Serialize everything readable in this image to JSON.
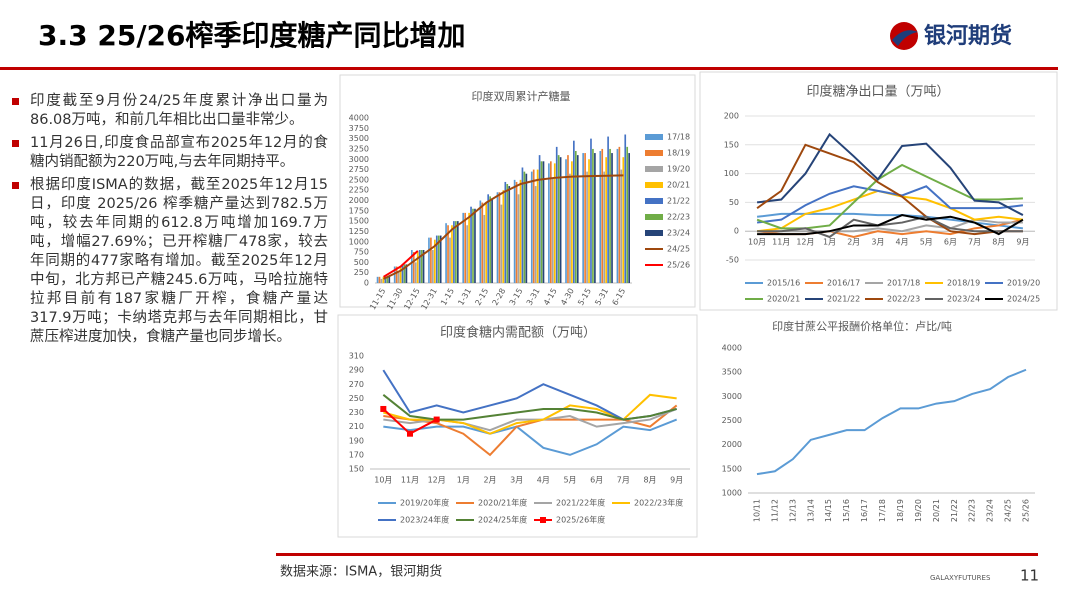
{
  "header": {
    "title": "3.3  25/26榨季印度糖产同比增加"
  },
  "logo": {
    "text": "银河期货"
  },
  "bullets": [
    "印度截至9月份24/25年度累计净出口量为86.08万吨，和前几年相比出口量非常少。",
    "11月26日,印度食品部宣布2025年12月的食糖内销配额为220万吨,与去年同期持平。",
    "根据印度ISMA的数据，截至2025年12月15日，印度 2025/26 榨季糖产量达到782.5万吨，较去年同期的612.8万吨增加169.7万吨，增幅27.69%；已开榨糖厂478家，较去年同期的477家略有增加。截至2025年12月中旬，北方邦已产糖245.6万吨，马哈拉施特拉邦目前有187家糖厂开榨，食糖产量达317.9万吨；卡纳塔克邦与去年同期相比，甘蔗压榨进度加快，食糖产量也同步增长。"
  ],
  "chart_data": [
    {
      "type": "bar",
      "title": "印度双周累计产糖量",
      "categories": [
        "11-15",
        "11-30",
        "12-15",
        "12-31",
        "1-15",
        "1-31",
        "2-15",
        "2-28",
        "3-15",
        "3-31",
        "4-15",
        "4-30",
        "5-15",
        "5-31",
        "6-15"
      ],
      "ylim": [
        0,
        4000
      ],
      "yticks": [
        0,
        250,
        500,
        750,
        1000,
        1250,
        1500,
        1750,
        2000,
        2250,
        2500,
        2750,
        3000,
        3250,
        3500,
        3750,
        4000
      ],
      "grid": false,
      "series": [
        {
          "name": "17/18",
          "color": "#5b9bd5",
          "values": [
            150,
            400,
            800,
            1100,
            1450,
            1700,
            2000,
            2200,
            2500,
            2700,
            2900,
            3000,
            3150,
            3200,
            3250
          ]
        },
        {
          "name": "18/19",
          "color": "#ed7d31",
          "values": [
            150,
            400,
            750,
            1100,
            1400,
            1700,
            1950,
            2200,
            2450,
            2750,
            2950,
            3100,
            3150,
            3250,
            3300
          ]
        },
        {
          "name": "19/20",
          "color": "#a5a5a5",
          "values": [
            100,
            250,
            500,
            800,
            1100,
            1400,
            1650,
            1900,
            2150,
            2350,
            2550,
            2650,
            2700,
            2700,
            2750
          ]
        },
        {
          "name": "20/21",
          "color": "#ffc000",
          "values": [
            150,
            400,
            750,
            1050,
            1400,
            1700,
            1950,
            2250,
            2500,
            2750,
            2900,
            2950,
            3000,
            3050,
            3050
          ]
        },
        {
          "name": "21/22",
          "color": "#4472c4",
          "values": [
            150,
            450,
            800,
            1150,
            1500,
            1850,
            2150,
            2450,
            2800,
            3100,
            3300,
            3450,
            3500,
            3550,
            3600
          ]
        },
        {
          "name": "22/23",
          "color": "#70ad47",
          "values": [
            150,
            450,
            800,
            1150,
            1500,
            1800,
            2100,
            2400,
            2700,
            2950,
            3100,
            3200,
            3250,
            3250,
            3300
          ]
        },
        {
          "name": "23/24",
          "color": "#264478",
          "values": [
            150,
            450,
            800,
            1150,
            1500,
            1800,
            2050,
            2350,
            2650,
            2950,
            3050,
            3100,
            3150,
            3150,
            3150
          ]
        },
        {
          "name": "24/25",
          "color": "#9e480e",
          "type": "line",
          "values": [
            100,
            300,
            600,
            900,
            1300,
            1600,
            1950,
            2200,
            2400,
            2500,
            2550,
            2580,
            2590,
            2600,
            2610
          ]
        },
        {
          "name": "25/26",
          "color": "#ff0000",
          "type": "line",
          "values": [
            150,
            400,
            780,
            null,
            null,
            null,
            null,
            null,
            null,
            null,
            null,
            null,
            null,
            null,
            null
          ]
        }
      ]
    },
    {
      "type": "line",
      "title": "印度糖净出口量（万吨）",
      "categories": [
        "10月",
        "11月",
        "12月",
        "1月",
        "2月",
        "3月",
        "4月",
        "5月",
        "6月",
        "7月",
        "8月",
        "9月"
      ],
      "ylim": [
        -50,
        200
      ],
      "yticks": [
        -50,
        0,
        50,
        100,
        150,
        200
      ],
      "grid": true,
      "series": [
        {
          "name": "2015/16",
          "color": "#5b9bd5",
          "values": [
            25,
            30,
            30,
            30,
            30,
            28,
            28,
            25,
            20,
            15,
            10,
            5
          ]
        },
        {
          "name": "2016/17",
          "color": "#ed7d31",
          "values": [
            0,
            -5,
            -5,
            0,
            -10,
            0,
            -5,
            0,
            -5,
            5,
            10,
            20
          ]
        },
        {
          "name": "2017/18",
          "color": "#a5a5a5",
          "values": [
            0,
            0,
            0,
            0,
            0,
            5,
            0,
            10,
            5,
            20,
            15,
            15
          ]
        },
        {
          "name": "2018/19",
          "color": "#ffc000",
          "values": [
            0,
            5,
            30,
            40,
            55,
            70,
            60,
            55,
            40,
            20,
            25,
            20
          ]
        },
        {
          "name": "2019/20",
          "color": "#4472c4",
          "values": [
            15,
            20,
            45,
            65,
            78,
            70,
            62,
            78,
            40,
            40,
            40,
            45
          ]
        },
        {
          "name": "2020/21",
          "color": "#70ad47",
          "values": [
            20,
            5,
            5,
            10,
            50,
            90,
            115,
            95,
            75,
            55,
            55,
            57
          ]
        },
        {
          "name": "2021/22",
          "color": "#264478",
          "values": [
            50,
            55,
            100,
            168,
            130,
            90,
            148,
            152,
            110,
            53,
            50,
            28
          ]
        },
        {
          "name": "2022/23",
          "color": "#9e480e",
          "values": [
            40,
            70,
            150,
            135,
            120,
            85,
            60,
            25,
            0,
            -5,
            0,
            0
          ]
        },
        {
          "name": "2023/24",
          "color": "#636363",
          "values": [
            0,
            0,
            5,
            -10,
            20,
            10,
            15,
            25,
            5,
            0,
            0,
            0
          ]
        },
        {
          "name": "2024/25",
          "color": "#000000",
          "values": [
            -5,
            -5,
            -5,
            0,
            10,
            10,
            28,
            20,
            25,
            15,
            -5,
            20
          ]
        }
      ]
    },
    {
      "type": "line",
      "title": "印度食糖内需配额（万吨）",
      "categories": [
        "10月",
        "11月",
        "12月",
        "1月",
        "2月",
        "3月",
        "4月",
        "5月",
        "6月",
        "7月",
        "8月",
        "9月"
      ],
      "ylim": [
        150,
        310
      ],
      "yticks": [
        150,
        170,
        190,
        210,
        230,
        250,
        270,
        290,
        310
      ],
      "grid": false,
      "series": [
        {
          "name": "2019/20年度",
          "color": "#5b9bd5",
          "values": [
            210,
            205,
            210,
            210,
            200,
            210,
            180,
            170,
            185,
            210,
            205,
            220
          ]
        },
        {
          "name": "2020/21年度",
          "color": "#ed7d31",
          "values": [
            225,
            220,
            215,
            200,
            170,
            210,
            220,
            220,
            220,
            220,
            210,
            240
          ]
        },
        {
          "name": "2021/22年度",
          "color": "#a5a5a5",
          "values": [
            220,
            215,
            220,
            215,
            205,
            220,
            220,
            225,
            210,
            215,
            220,
            235
          ]
        },
        {
          "name": "2022/23年度",
          "color": "#ffc000",
          "values": [
            230,
            220,
            220,
            215,
            200,
            215,
            220,
            240,
            235,
            220,
            255,
            250
          ]
        },
        {
          "name": "2023/24年度",
          "color": "#4472c4",
          "values": [
            290,
            230,
            240,
            230,
            240,
            250,
            270,
            255,
            240,
            220,
            225,
            235
          ]
        },
        {
          "name": "2024/25年度",
          "color": "#548235",
          "values": [
            255,
            225,
            220,
            220,
            225,
            230,
            235,
            235,
            230,
            220,
            225,
            235
          ]
        },
        {
          "name": "2025/26年度",
          "color": "#ff0000",
          "marker": "square",
          "values": [
            235,
            200,
            220,
            null,
            null,
            null,
            null,
            null,
            null,
            null,
            null,
            null
          ]
        }
      ]
    },
    {
      "type": "line",
      "title": "印度甘蔗公平报酬价格单位：卢比/吨",
      "categories": [
        "10/11",
        "11/12",
        "12/13",
        "13/14",
        "14/15",
        "15/16",
        "16/17",
        "17/18",
        "18/19",
        "19/20",
        "20/21",
        "21/22",
        "22/23",
        "23/24",
        "24/25",
        "25/26"
      ],
      "ylim": [
        1000,
        4000
      ],
      "yticks": [
        1000,
        1500,
        2000,
        2500,
        3000,
        3500,
        4000
      ],
      "grid": false,
      "series": [
        {
          "color": "#5b9bd5",
          "values": [
            1390,
            1450,
            1700,
            2100,
            2200,
            2300,
            2300,
            2550,
            2750,
            2750,
            2850,
            2900,
            3050,
            3150,
            3400,
            3550
          ]
        }
      ]
    }
  ],
  "footer": {
    "source": "数据来源：ISMA，银河期货",
    "brand": "GALAXYFUTURES",
    "page": "11"
  }
}
